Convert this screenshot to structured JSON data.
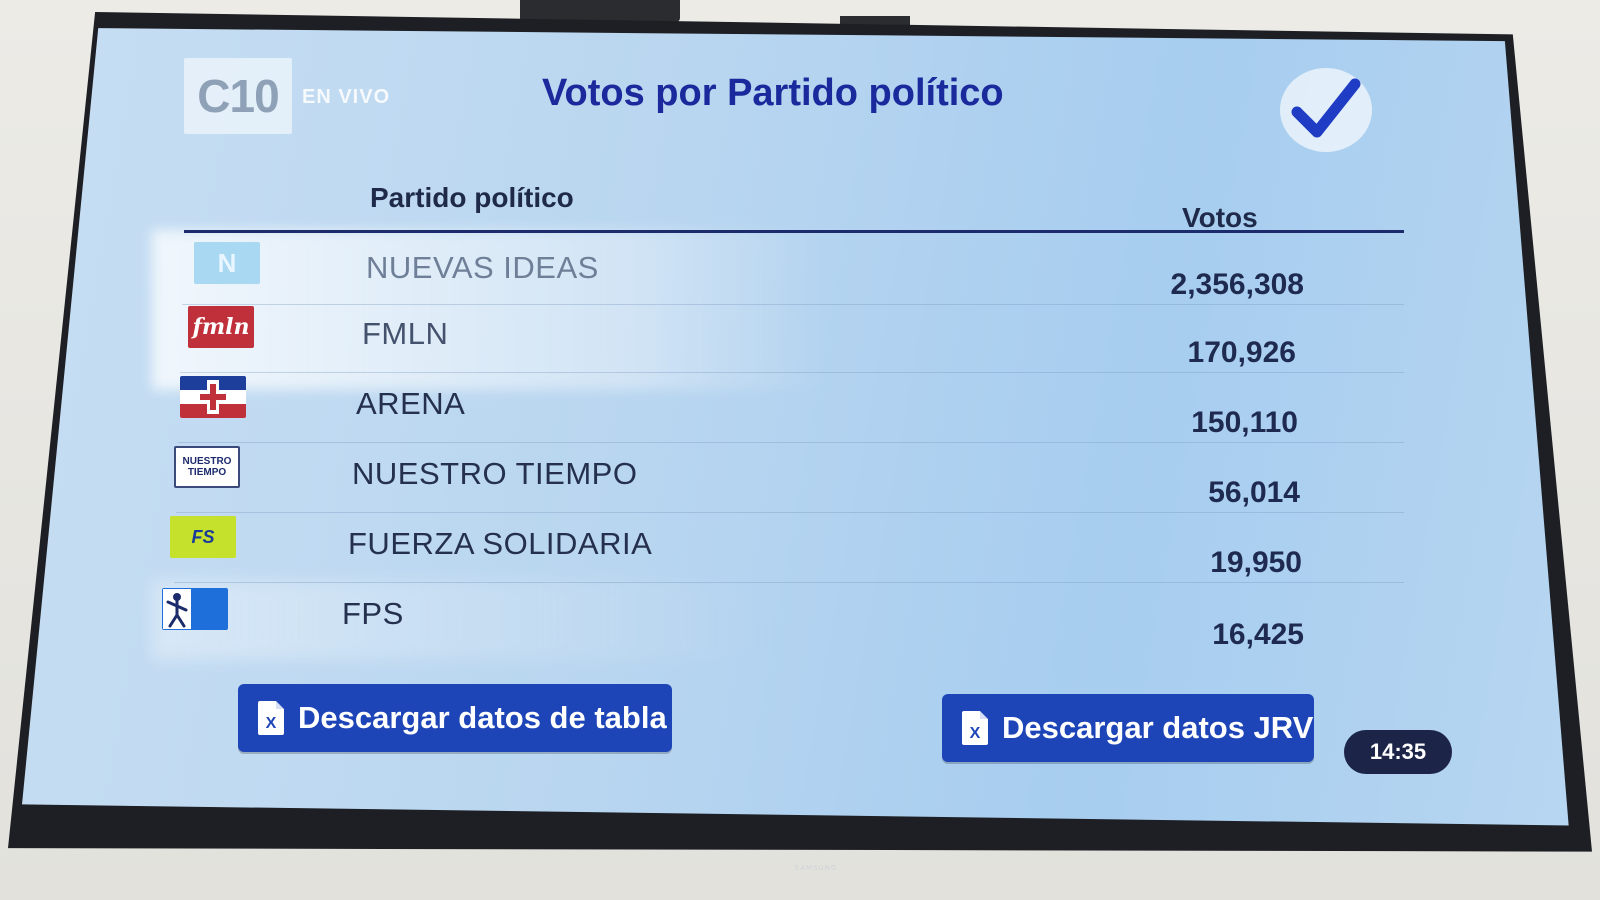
{
  "header": {
    "logo_text": "C10",
    "live_label": "EN VIVO",
    "title": "Votos por Partido político"
  },
  "table": {
    "columns": {
      "party": "Partido político",
      "votes": "Votos"
    },
    "rows": [
      {
        "party": "NUEVAS IDEAS",
        "votes": "2,356,308",
        "logo_text": "N"
      },
      {
        "party": "FMLN",
        "votes": "170,926",
        "logo_text": "fmln"
      },
      {
        "party": "ARENA",
        "votes": "150,110",
        "logo_text": ""
      },
      {
        "party": "NUESTRO TIEMPO",
        "votes": "56,014",
        "logo_text": "NUESTRO TIEMPO"
      },
      {
        "party": "FUERZA SOLIDARIA",
        "votes": "19,950",
        "logo_text": "FS"
      },
      {
        "party": "FPS",
        "votes": "16,425",
        "logo_text": ""
      }
    ]
  },
  "buttons": {
    "download_table": "Descargar datos de tabla",
    "download_jrv": "Descargar datos JRV",
    "file_glyph": "X"
  },
  "clock": "14:35",
  "tv_brand": "SAMSUNG",
  "colors": {
    "title": "#1a2a9c",
    "button": "#1e45b8",
    "clock_bg": "#1c2447",
    "nuevas_ideas": "#9fd3f0",
    "fmln": "#c0303a",
    "arena": "#1d3e9a",
    "fuerza_solidaria": "#c6e12b",
    "fps": "#1e6fd9"
  }
}
